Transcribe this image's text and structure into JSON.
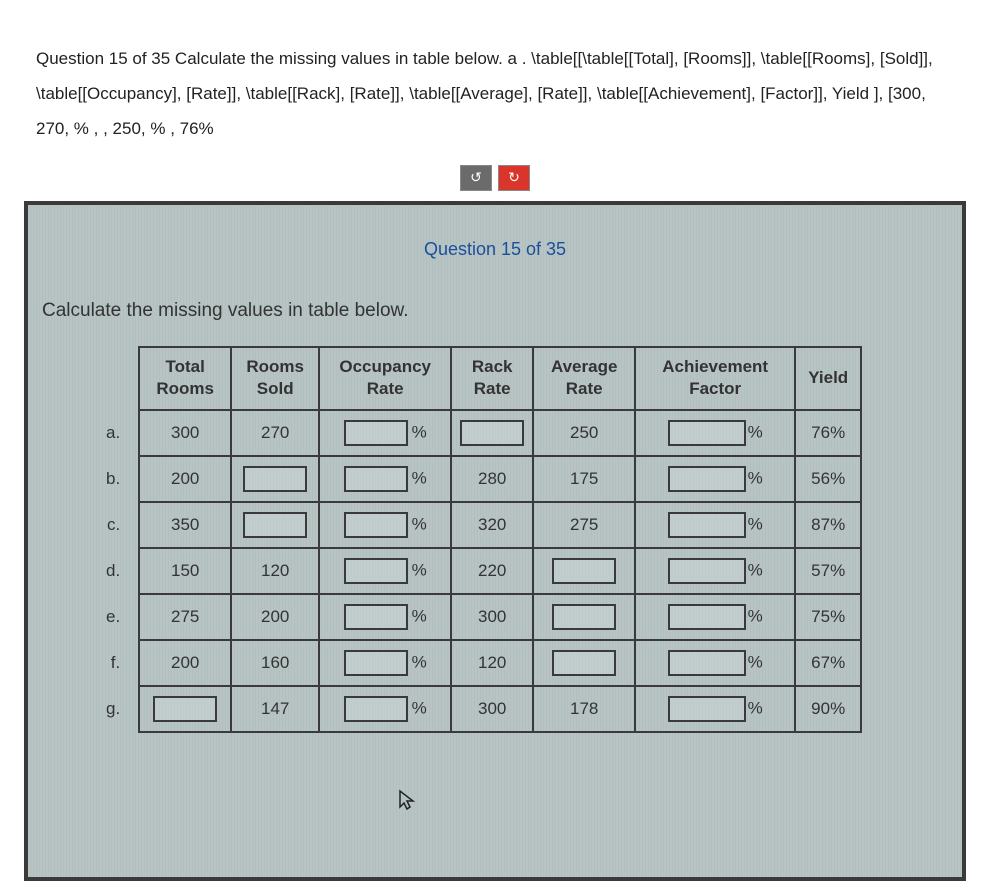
{
  "question_text": "Question 15 of 35 Calculate the missing values in table below. a . \\table[[\\table[[Total], [Rooms]], \\table[[Rooms], [Sold]], \\table[[Occupancy], [Rate]], \\table[[Rack], [Rate]], \\table[[Average], [Rate]], \\table[[Achievement], [Factor]], Yield ], [300, 270, % , , 250, % , 76%",
  "panel_title": "Question 15 of 35",
  "panel_instruction": "Calculate the missing values in table below.",
  "toolbar": {
    "undo": "↺",
    "redo": "↻"
  },
  "columns": {
    "total": "Total Rooms",
    "sold": "Rooms Sold",
    "occ": "Occupancy Rate",
    "rack": "Rack Rate",
    "avg": "Average Rate",
    "ach": "Achievement Factor",
    "yield": "Yield"
  },
  "pct": "%",
  "rows": [
    {
      "label": "a.",
      "total": "300",
      "sold": "270",
      "occ_input": true,
      "rack": "",
      "rack_input": true,
      "avg": "250",
      "avg_input": false,
      "ach_input": true,
      "yield": "76%"
    },
    {
      "label": "b.",
      "total": "200",
      "sold": "",
      "sold_input": true,
      "occ_input": true,
      "rack": "280",
      "rack_input": false,
      "avg": "175",
      "avg_input": false,
      "ach_input": true,
      "yield": "56%"
    },
    {
      "label": "c.",
      "total": "350",
      "sold": "",
      "sold_input": true,
      "occ_input": true,
      "rack": "320",
      "rack_input": false,
      "avg": "275",
      "avg_input": false,
      "ach_input": true,
      "yield": "87%"
    },
    {
      "label": "d.",
      "total": "150",
      "sold": "120",
      "occ_input": true,
      "rack": "220",
      "rack_input": false,
      "avg": "",
      "avg_input": true,
      "ach_input": true,
      "yield": "57%"
    },
    {
      "label": "e.",
      "total": "275",
      "sold": "200",
      "occ_input": true,
      "rack": "300",
      "rack_input": false,
      "avg": "",
      "avg_input": true,
      "ach_input": true,
      "yield": "75%"
    },
    {
      "label": "f.",
      "total": "200",
      "sold": "160",
      "occ_input": true,
      "rack": "120",
      "rack_input": false,
      "avg": "",
      "avg_input": true,
      "ach_input": true,
      "yield": "67%"
    },
    {
      "label": "g.",
      "total": "",
      "total_input": true,
      "sold": "147",
      "occ_input": true,
      "rack": "300",
      "rack_input": false,
      "avg": "178",
      "avg_input": false,
      "ach_input": true,
      "yield": "90%"
    }
  ],
  "colors": {
    "panel_bg": "#b8c4c4",
    "border": "#3a3a3a",
    "title": "#1a4f9c",
    "undo_bg": "#6b6b6b",
    "redo_bg": "#d9352a"
  }
}
